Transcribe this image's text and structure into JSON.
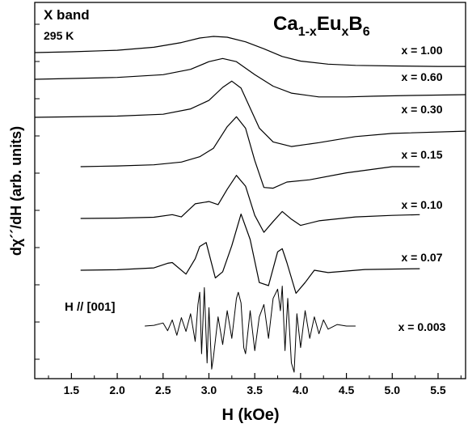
{
  "chart_data": {
    "type": "line",
    "xlabel": "H (kOe)",
    "ylabel": "dχ´´/dH  (arb. units)",
    "xlim": [
      1.1,
      5.8
    ],
    "xticks": [
      "1.5",
      "2.0",
      "2.5",
      "3.0",
      "3.5",
      "4.0",
      "4.5",
      "5.0",
      "5.5"
    ],
    "yticks_labeled": false,
    "annotations": {
      "band": "X band",
      "temperature": "295 K",
      "field_direction": "H // [001]"
    },
    "compound": {
      "base1": "Ca",
      "sub1": "1-x",
      "base2": "Eu",
      "sub2": "x",
      "base3": "B",
      "sub3": "6"
    },
    "series": [
      {
        "name": "x = 1.00",
        "x": [
          1.1,
          1.5,
          2.0,
          2.4,
          2.7,
          2.9,
          3.05,
          3.2,
          3.4,
          3.6,
          3.8,
          4.0,
          4.3,
          4.6,
          5.0,
          5.5,
          5.8
        ],
        "y": [
          0.0,
          0.5,
          1.5,
          3.5,
          6.5,
          9.5,
          10.5,
          10.0,
          7.0,
          2.5,
          -2.5,
          -5.5,
          -7.5,
          -8.3,
          -8.7,
          -9.0,
          -9.0
        ]
      },
      {
        "name": "x = 0.60",
        "x": [
          1.1,
          1.5,
          2.0,
          2.5,
          2.8,
          3.0,
          3.15,
          3.3,
          3.5,
          3.7,
          3.9,
          4.2,
          4.5,
          4.8,
          5.2,
          5.8
        ],
        "y": [
          0.0,
          0.5,
          1.2,
          3.0,
          6.5,
          11.5,
          13.5,
          11.5,
          3.0,
          -4.5,
          -9.0,
          -11.5,
          -11.5,
          -11.0,
          -10.5,
          -10.0
        ]
      },
      {
        "name": "x = 0.30",
        "x": [
          1.1,
          1.5,
          2.0,
          2.5,
          2.8,
          3.0,
          3.15,
          3.25,
          3.35,
          3.45,
          3.55,
          3.7,
          3.9,
          4.2,
          4.6,
          5.0,
          5.8
        ],
        "y": [
          0.0,
          0.3,
          0.8,
          2.0,
          5.5,
          11.0,
          19.5,
          23.5,
          19.0,
          6.0,
          -7.0,
          -16.0,
          -19.0,
          -16.5,
          -12.5,
          -10.5,
          -9.0
        ]
      },
      {
        "name": "x = 0.15",
        "x": [
          1.6,
          2.0,
          2.4,
          2.7,
          2.9,
          3.05,
          3.2,
          3.3,
          3.4,
          3.5,
          3.6,
          3.7,
          3.85,
          4.1,
          4.5,
          5.0,
          5.3
        ],
        "y": [
          0.0,
          0.5,
          1.2,
          3.0,
          6.5,
          12.0,
          26.0,
          32.5,
          25.0,
          4.0,
          -13.5,
          -14.0,
          -10.0,
          -8.5,
          -4.0,
          0.0,
          0.0
        ]
      },
      {
        "name": "x = 0.10",
        "x": [
          1.6,
          2.0,
          2.4,
          2.6,
          2.7,
          2.85,
          3.0,
          3.1,
          3.2,
          3.3,
          3.4,
          3.5,
          3.6,
          3.7,
          3.8,
          3.9,
          4.0,
          4.2,
          4.6,
          5.0,
          5.3
        ],
        "y": [
          0.0,
          0.2,
          0.8,
          2.5,
          1.0,
          9.5,
          11.0,
          9.0,
          19.0,
          28.0,
          21.0,
          2.0,
          -9.0,
          -2.0,
          4.5,
          -0.5,
          -4.5,
          -1.5,
          1.0,
          2.0,
          2.5
        ]
      },
      {
        "name": "x = 0.07",
        "x": [
          1.6,
          2.0,
          2.4,
          2.55,
          2.6,
          2.75,
          2.85,
          2.9,
          2.97,
          3.07,
          3.15,
          3.25,
          3.35,
          3.45,
          3.55,
          3.65,
          3.75,
          3.8,
          3.85,
          3.95,
          4.05,
          4.15,
          4.3,
          4.7,
          5.3
        ],
        "y": [
          0.0,
          0.3,
          1.5,
          4.5,
          5.0,
          -2.5,
          7.5,
          15.5,
          18.0,
          -5.0,
          -1.0,
          16.0,
          36.5,
          20.0,
          -8.0,
          -10.0,
          12.0,
          14.0,
          5.0,
          -15.0,
          -8.0,
          0.0,
          -1.5,
          0.5,
          1.0
        ]
      },
      {
        "name": "x = 0.003",
        "x": [
          2.3,
          2.4,
          2.5,
          2.55,
          2.6,
          2.65,
          2.7,
          2.75,
          2.8,
          2.85,
          2.88,
          2.9,
          2.92,
          2.95,
          2.98,
          3.0,
          3.03,
          3.05,
          3.1,
          3.15,
          3.2,
          3.25,
          3.3,
          3.32,
          3.35,
          3.38,
          3.4,
          3.45,
          3.5,
          3.55,
          3.6,
          3.65,
          3.7,
          3.75,
          3.78,
          3.8,
          3.83,
          3.86,
          3.9,
          3.93,
          3.96,
          4.0,
          4.05,
          4.1,
          4.15,
          4.2,
          4.25,
          4.3,
          4.4,
          4.5,
          4.6
        ],
        "y": [
          0.0,
          0.5,
          2.0,
          -3.0,
          4.0,
          -6.0,
          5.5,
          -3.5,
          8.0,
          -10.0,
          14.0,
          22.0,
          -18.0,
          25.0,
          -24.0,
          12.0,
          -28.0,
          -20.0,
          6.0,
          -12.0,
          10.0,
          -8.0,
          18.0,
          22.0,
          15.0,
          -14.0,
          -18.0,
          10.0,
          -16.0,
          6.0,
          14.0,
          -8.0,
          18.0,
          24.0,
          10.0,
          26.0,
          -16.0,
          18.0,
          -24.0,
          -30.0,
          8.0,
          -14.0,
          10.0,
          -8.0,
          6.0,
          -5.0,
          4.0,
          -2.0,
          1.0,
          0.0,
          0.0
        ]
      }
    ]
  }
}
